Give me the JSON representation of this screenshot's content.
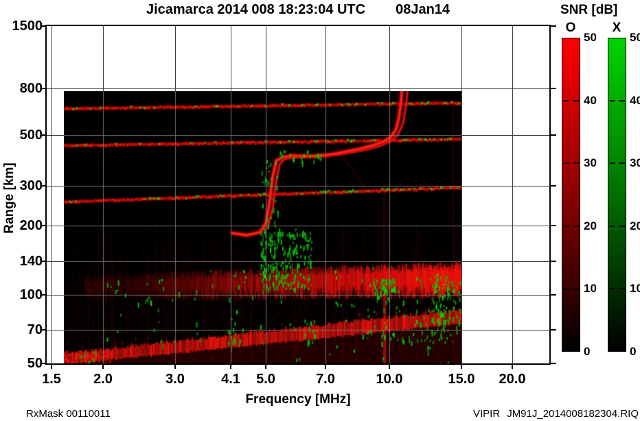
{
  "header": {
    "title_left": "Jicamarca 2014 008 18:23:04 UTC",
    "title_right": "08Jan14"
  },
  "footer": {
    "left": "RxMask 00110011",
    "right_program": "VIPIR",
    "right_file": "JM91J_2014008182304.RIQ"
  },
  "chart_data": {
    "type": "heatmap",
    "title": "Jicamarca 2014 008 18:23:04 UTC 08Jan14",
    "station": "Jicamarca",
    "timestamp_utc": "2014 008 18:23:04 UTC",
    "date": "08Jan14",
    "xlabel": "Frequency [MHz]",
    "ylabel": "Range [km]",
    "x_scale": "log",
    "y_scale": "log",
    "xlim": [
      1.46,
      24.6
    ],
    "ylim": [
      50,
      1500
    ],
    "x_ticks": [
      1.5,
      2.0,
      3.0,
      4.1,
      5.0,
      7.0,
      10.0,
      15.0,
      20.0
    ],
    "x_tick_labels": [
      "1.5",
      "2.0",
      "3.0",
      "4.1",
      "5.0",
      "7.0",
      "10.0",
      "15.0",
      "20.0"
    ],
    "y_ticks": [
      50,
      70,
      100,
      140,
      200,
      300,
      500,
      800,
      1500
    ],
    "y_tick_labels": [
      "50",
      "70",
      "100",
      "140",
      "200",
      "300",
      "500",
      "800",
      "1500"
    ],
    "grid": true,
    "background_color": "#000000",
    "colorbar": {
      "title": "SNR [dB]",
      "min": 0,
      "max": 50,
      "ticks": [
        0,
        10,
        20,
        30,
        40,
        50
      ],
      "legend_position": "right",
      "modes": [
        {
          "label": "O",
          "color_top": "#ff0000",
          "color_mid": "#850000",
          "color_bottom": "#000000"
        },
        {
          "label": "X",
          "color_top": "#00d400",
          "color_mid": "#006c00",
          "color_bottom": "#000000"
        }
      ]
    },
    "data_extent": {
      "freq_mhz": [
        1.61,
        15.03
      ],
      "range_km": [
        50,
        780
      ]
    },
    "features": {
      "interference_bands": [
        {
          "range_km": [
            653,
            692
          ],
          "green_density": [
            0.05,
            0.22
          ]
        },
        {
          "range_km": [
            450,
            480
          ],
          "green_density": [
            0.06,
            0.22
          ]
        },
        {
          "range_km": [
            255,
            295
          ],
          "green_density": [
            0.07,
            0.25
          ]
        }
      ],
      "f_trace_o_mhz_km": [
        [
          4.15,
          186
        ],
        [
          4.5,
          182
        ],
        [
          4.85,
          188
        ],
        [
          5.0,
          205
        ],
        [
          5.1,
          250
        ],
        [
          5.2,
          330
        ],
        [
          5.3,
          385
        ],
        [
          5.5,
          400
        ],
        [
          5.8,
          406
        ],
        [
          6.2,
          404
        ],
        [
          6.6,
          405
        ],
        [
          7.0,
          408
        ],
        [
          7.5,
          416
        ],
        [
          8.0,
          426
        ],
        [
          8.6,
          438
        ],
        [
          9.2,
          452
        ],
        [
          9.7,
          468
        ],
        [
          10.1,
          490
        ],
        [
          10.4,
          530
        ],
        [
          10.55,
          590
        ],
        [
          10.65,
          660
        ],
        [
          10.72,
          750
        ],
        [
          10.75,
          800
        ]
      ],
      "f_trace_x_mhz_km": [
        [
          5.05,
          195
        ],
        [
          5.2,
          240
        ],
        [
          5.3,
          310
        ],
        [
          5.4,
          370
        ],
        [
          5.55,
          392
        ],
        [
          5.9,
          399
        ],
        [
          6.5,
          401
        ],
        [
          7.2,
          407
        ],
        [
          8.0,
          418
        ],
        [
          8.8,
          431
        ],
        [
          9.5,
          448
        ],
        [
          10.05,
          468
        ],
        [
          10.5,
          500
        ],
        [
          10.8,
          560
        ],
        [
          10.95,
          640
        ],
        [
          11.05,
          730
        ],
        [
          11.1,
          800
        ]
      ],
      "oblique_echo_mhz_km": [
        [
          7.35,
          460
        ],
        [
          8.7,
          295
        ]
      ],
      "e_region_band": {
        "freq_mhz": [
          1.8,
          15.0
        ],
        "range_top_km": [
          118,
          133
        ],
        "range_bottom_km": [
          94,
          97
        ]
      },
      "bottom_band": {
        "freq_mhz": [
          1.61,
          15.0
        ],
        "range_center_km": [
          52,
          80
        ],
        "thickness_km": [
          4,
          9
        ]
      },
      "bottom_left_blob": {
        "freq_mhz": [
          1.61,
          2.1
        ],
        "range_km": [
          50,
          57
        ]
      },
      "green_clusters": [
        {
          "freq_mhz": [
            4.85,
            6.45
          ],
          "range_km": [
            105,
            196
          ],
          "count": 240
        },
        {
          "freq_mhz": [
            9.1,
            10.35
          ],
          "range_km": [
            97,
            118
          ],
          "count": 60
        },
        {
          "freq_mhz": [
            12.6,
            15.0
          ],
          "range_km": [
            72,
            122
          ],
          "count": 100
        },
        {
          "freq_mhz": [
            4.85,
            5.35
          ],
          "range_km": [
            200,
            390
          ],
          "count": 30
        },
        {
          "freq_mhz": [
            5.4,
            7.0
          ],
          "range_km": [
            380,
            430
          ],
          "count": 25
        },
        {
          "freq_mhz": [
            4.0,
            4.4
          ],
          "range_km": [
            58,
            72
          ],
          "count": 14
        },
        {
          "freq_mhz": [
            6.2,
            6.6
          ],
          "range_km": [
            60,
            78
          ],
          "count": 16
        },
        {
          "freq_mhz": [
            8.8,
            15.0
          ],
          "range_km": [
            62,
            88
          ],
          "count": 70
        },
        {
          "freq_mhz": [
            1.74,
            1.92
          ],
          "range_km": [
            50,
            57
          ],
          "count": 10
        },
        {
          "freq_mhz": [
            2.0,
            15.0
          ],
          "range_km": [
            48,
            90
          ],
          "count": 45
        },
        {
          "freq_mhz": [
            2.0,
            15.0
          ],
          "range_km": [
            90,
            135
          ],
          "count": 60
        }
      ],
      "vertical_streaks": [
        {
          "freq_mhz": 9.75,
          "range_km": [
            50,
            135
          ],
          "alpha": 0.55,
          "width": 4
        },
        {
          "freq_mhz": 9.72,
          "range_km": [
            135,
            310
          ],
          "alpha": 0.15,
          "width": 3
        },
        {
          "freq_mhz": 14.35,
          "range_km": [
            120,
            690
          ],
          "alpha": 0.11,
          "width": 3
        }
      ]
    }
  }
}
